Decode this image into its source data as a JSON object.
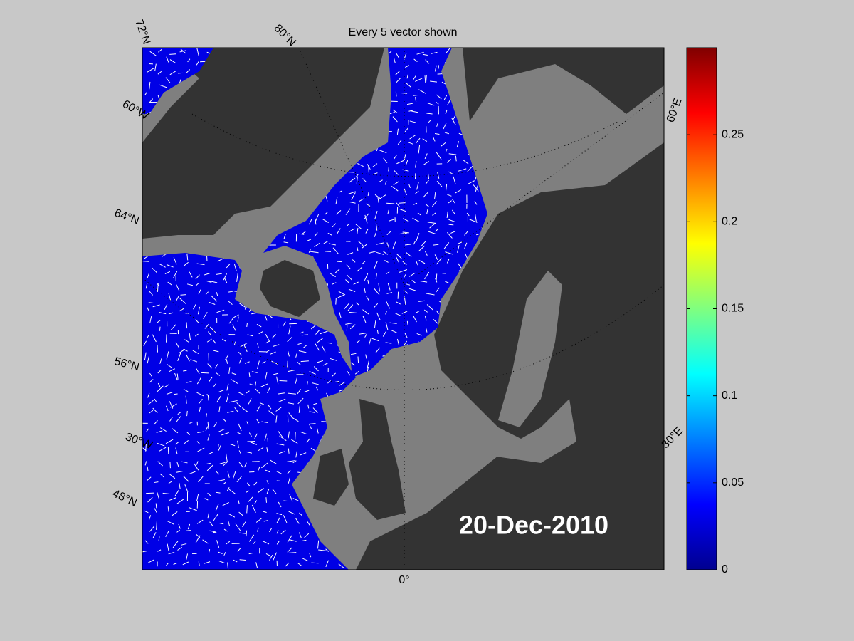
{
  "title": "Every 5 vector shown",
  "date_label": "20-Dec-2010",
  "graticule_labels": [
    "72°N",
    "80°N",
    "60°W",
    "64°N",
    "56°N",
    "30°W",
    "48°N",
    "0°",
    "30°E",
    "60°E"
  ],
  "colorbar": {
    "range": [
      0,
      0.3
    ],
    "ticks": [
      0,
      0.05,
      0.1,
      0.15,
      0.2,
      0.25
    ]
  }
}
